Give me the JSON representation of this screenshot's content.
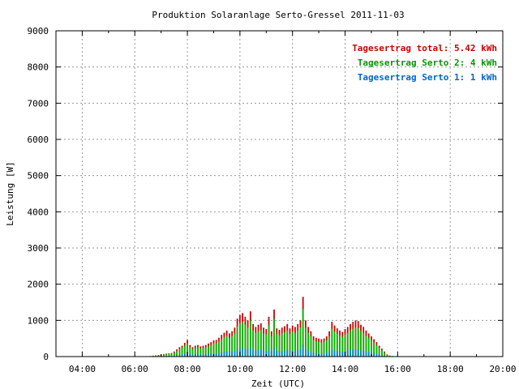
{
  "chart_data": {
    "type": "bar",
    "title": "Produktion Solaranlage Serto-Gressel 2011-11-03",
    "xlabel": "Zeit (UTC)",
    "ylabel": "Leistung [W]",
    "xlim": [
      3.0,
      20.0
    ],
    "ylim": [
      0,
      9000
    ],
    "x_ticks": [
      4,
      6,
      8,
      10,
      12,
      14,
      16,
      18,
      20
    ],
    "x_tick_labels": [
      "04:00",
      "06:00",
      "08:00",
      "10:00",
      "12:00",
      "14:00",
      "16:00",
      "18:00",
      "20:00"
    ],
    "y_ticks": [
      0,
      1000,
      2000,
      3000,
      4000,
      5000,
      6000,
      7000,
      8000,
      9000
    ],
    "y_tick_labels": [
      "0",
      "1000",
      "2000",
      "3000",
      "4000",
      "5000",
      "6000",
      "7000",
      "8000",
      "9000"
    ],
    "grid": true,
    "legend_position": "top-right",
    "legend": [
      {
        "label": "Tagesertrag total: 5.42 kWh",
        "color": "#cc0000"
      },
      {
        "label": "Tagesertrag Serto 2: 4 kWh",
        "color": "#009900"
      },
      {
        "label": "Tagesertrag Serto 1: 1 kWh",
        "color": "#0066cc"
      }
    ],
    "series_colors": {
      "total": "#cc0000",
      "serto2": "#00bb00",
      "serto1": "#0088cc"
    },
    "x_hours": [
      6.5,
      6.6,
      6.7,
      6.8,
      6.9,
      7.0,
      7.1,
      7.2,
      7.3,
      7.4,
      7.5,
      7.6,
      7.7,
      7.8,
      7.9,
      8.0,
      8.1,
      8.2,
      8.3,
      8.4,
      8.5,
      8.6,
      8.7,
      8.8,
      8.9,
      9.0,
      9.1,
      9.2,
      9.3,
      9.4,
      9.5,
      9.6,
      9.7,
      9.8,
      9.9,
      10.0,
      10.1,
      10.2,
      10.3,
      10.4,
      10.5,
      10.6,
      10.7,
      10.8,
      10.9,
      11.0,
      11.1,
      11.2,
      11.3,
      11.4,
      11.5,
      11.6,
      11.7,
      11.8,
      11.9,
      12.0,
      12.1,
      12.2,
      12.3,
      12.4,
      12.5,
      12.6,
      12.7,
      12.8,
      12.9,
      13.0,
      13.1,
      13.2,
      13.3,
      13.4,
      13.5,
      13.6,
      13.7,
      13.8,
      13.9,
      14.0,
      14.1,
      14.2,
      14.3,
      14.4,
      14.5,
      14.6,
      14.7,
      14.8,
      14.9,
      15.0,
      15.1,
      15.2,
      15.3,
      15.4,
      15.5,
      15.6,
      15.7,
      15.8
    ],
    "total": [
      10,
      15,
      25,
      35,
      45,
      60,
      70,
      80,
      90,
      100,
      140,
      200,
      260,
      300,
      380,
      460,
      320,
      260,
      300,
      320,
      280,
      300,
      320,
      360,
      400,
      450,
      460,
      520,
      600,
      660,
      720,
      640,
      700,
      800,
      1050,
      1150,
      1200,
      1100,
      1000,
      1250,
      900,
      820,
      880,
      920,
      800,
      760,
      1100,
      700,
      1300,
      780,
      740,
      800,
      840,
      900,
      780,
      860,
      820,
      900,
      1000,
      1650,
      1000,
      820,
      700,
      560,
      520,
      500,
      480,
      500,
      560,
      700,
      960,
      860,
      780,
      720,
      680,
      760,
      820,
      900,
      960,
      1000,
      980,
      880,
      820,
      720,
      640,
      560,
      480,
      400,
      300,
      220,
      140,
      60,
      30,
      15
    ],
    "serto2": [
      8,
      12,
      20,
      28,
      36,
      48,
      56,
      64,
      72,
      80,
      110,
      160,
      210,
      240,
      300,
      370,
      260,
      210,
      240,
      260,
      225,
      240,
      255,
      290,
      320,
      360,
      370,
      420,
      480,
      530,
      575,
      515,
      560,
      640,
      840,
      920,
      960,
      880,
      800,
      1000,
      720,
      655,
      700,
      735,
      640,
      610,
      880,
      560,
      1040,
      625,
      590,
      640,
      670,
      720,
      625,
      690,
      655,
      720,
      800,
      1320,
      800,
      655,
      560,
      450,
      415,
      400,
      385,
      400,
      450,
      560,
      770,
      690,
      625,
      575,
      545,
      610,
      655,
      720,
      770,
      800,
      785,
      705,
      655,
      575,
      510,
      450,
      385,
      320,
      240,
      175,
      110,
      48,
      24,
      12
    ],
    "serto1": [
      2,
      3,
      5,
      7,
      9,
      12,
      14,
      16,
      18,
      20,
      28,
      40,
      52,
      60,
      76,
      92,
      64,
      52,
      60,
      64,
      56,
      60,
      64,
      72,
      80,
      90,
      92,
      104,
      120,
      132,
      144,
      128,
      140,
      160,
      210,
      230,
      240,
      220,
      200,
      250,
      180,
      164,
      176,
      184,
      160,
      152,
      220,
      140,
      260,
      156,
      148,
      160,
      168,
      180,
      156,
      172,
      164,
      180,
      200,
      330,
      200,
      164,
      140,
      112,
      104,
      100,
      96,
      100,
      112,
      140,
      192,
      172,
      156,
      144,
      136,
      152,
      164,
      180,
      192,
      200,
      196,
      176,
      164,
      144,
      128,
      112,
      96,
      80,
      60,
      44,
      28,
      12,
      6,
      3
    ]
  }
}
